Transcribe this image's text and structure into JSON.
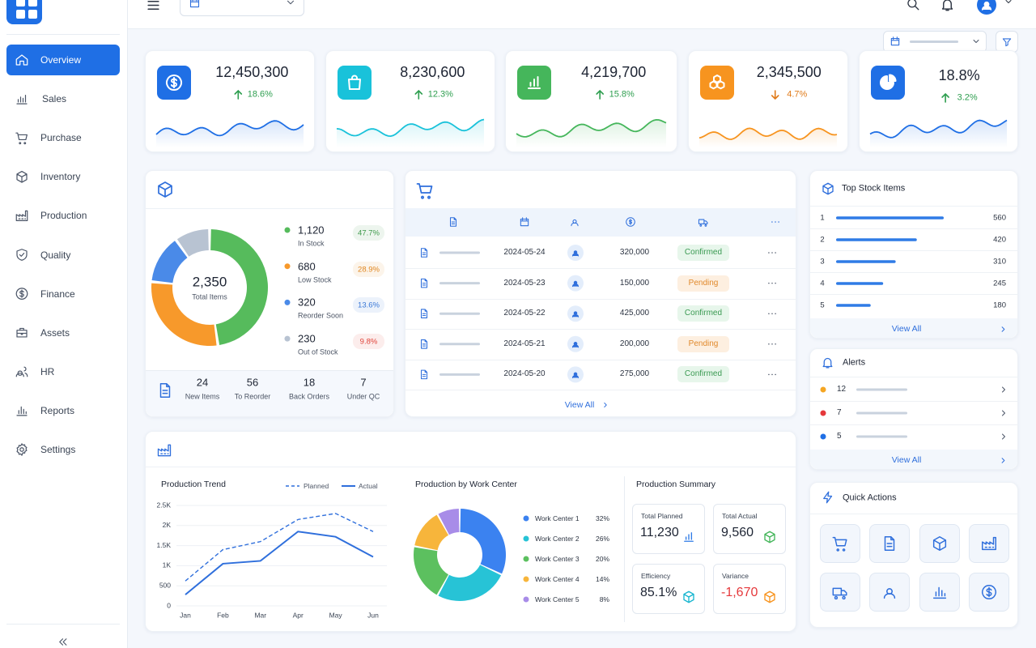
{
  "sidebar": {
    "items": [
      "Overview",
      "Sales",
      "Purchase",
      "Inventory",
      "Production",
      "Quality",
      "Finance",
      "Assets",
      "HR",
      "Reports",
      "Settings"
    ],
    "active": 0,
    "icons": [
      "home",
      "bars",
      "cart",
      "box",
      "factory",
      "shield",
      "dollar",
      "case",
      "users",
      "reports",
      "gear"
    ]
  },
  "kpis": [
    {
      "value": "12,450,300",
      "change": "18.6%",
      "direction": "up",
      "color": "#1f6fe5",
      "change_color": "#2e9e4f",
      "icon": "dollar"
    },
    {
      "value": "8,230,600",
      "change": "12.3%",
      "direction": "up",
      "color": "#19c2da",
      "change_color": "#2e9e4f",
      "icon": "bag"
    },
    {
      "value": "4,219,700",
      "change": "15.8%",
      "direction": "up",
      "color": "#45b65b",
      "change_color": "#2e9e4f",
      "icon": "chart"
    },
    {
      "value": "2,345,500",
      "change": "4.7%",
      "direction": "down",
      "color": "#f7941f",
      "change_color": "#e07b1a",
      "icon": "cubes"
    },
    {
      "value": "18.8%",
      "change": "3.2%",
      "direction": "up",
      "color": "#1f6fe5",
      "change_color": "#2e9e4f",
      "icon": "pie"
    }
  ],
  "inventory": {
    "total": "2,350",
    "total_label": "Total Items",
    "segments": [
      {
        "count": "1,120",
        "name": "In Stock",
        "percent": 47.7,
        "percent_label": "47.7%",
        "color": "#56bb5c"
      },
      {
        "count": "680",
        "name": "Low Stock",
        "percent": 28.9,
        "percent_label": "28.9%",
        "color": "#f7992b"
      },
      {
        "count": "320",
        "name": "Reorder Soon",
        "percent": 13.6,
        "percent_label": "13.6%",
        "color": "#4a8ae8"
      },
      {
        "count": "230",
        "name": "Out of Stock",
        "percent": 9.8,
        "percent_label": "9.8%",
        "color": "#b8c3d2"
      }
    ],
    "pill_colors": [
      "#3f9a4c",
      "#e0861f",
      "#3a78d6",
      "#e0443a"
    ],
    "stats": [
      {
        "value": "24",
        "label": "New Items"
      },
      {
        "value": "56",
        "label": "To Reorder"
      },
      {
        "value": "18",
        "label": "Back Orders"
      },
      {
        "value": "7",
        "label": "Under QC"
      }
    ]
  },
  "orders": {
    "rows": [
      {
        "date": "2024-05-24",
        "amount": "320,000",
        "status": "Confirmed",
        "status_color": "#3a9a52",
        "status_bg": "#e7f6eb"
      },
      {
        "date": "2024-05-23",
        "amount": "150,000",
        "status": "Pending",
        "status_color": "#e0882a",
        "status_bg": "#fdefe0"
      },
      {
        "date": "2024-05-22",
        "amount": "425,000",
        "status": "Confirmed",
        "status_color": "#3a9a52",
        "status_bg": "#e7f6eb"
      },
      {
        "date": "2024-05-21",
        "amount": "200,000",
        "status": "Pending",
        "status_color": "#e0882a",
        "status_bg": "#fdefe0"
      },
      {
        "date": "2024-05-20",
        "amount": "275,000",
        "status": "Confirmed",
        "status_color": "#3a9a52",
        "status_bg": "#e7f6eb"
      }
    ],
    "link": "View All"
  },
  "top_stock": {
    "title": "Top Stock Items",
    "color": "#2f7be6",
    "items": [
      {
        "rank": "1",
        "value": 560
      },
      {
        "rank": "2",
        "value": 420
      },
      {
        "rank": "3",
        "value": 310
      },
      {
        "rank": "4",
        "value": 245
      },
      {
        "rank": "5",
        "value": 180
      }
    ],
    "link": "View All"
  },
  "alerts": {
    "title": "Alerts",
    "items": [
      {
        "count": "12",
        "color": "#f5a623"
      },
      {
        "count": "7",
        "color": "#e5383b"
      },
      {
        "count": "5",
        "color": "#1f6fe5"
      }
    ],
    "link": "View All"
  },
  "quick_actions": {
    "title": "Quick Actions",
    "icons": [
      "cart",
      "doc",
      "box",
      "factory",
      "truck",
      "user",
      "reports",
      "dollar"
    ]
  },
  "production": {
    "trend": {
      "type": "line",
      "title": "Production Trend",
      "categories": [
        "Jan",
        "Feb",
        "Mar",
        "Apr",
        "May",
        "Jun"
      ],
      "series": [
        {
          "name": "Planned",
          "color": "#2f6fdc",
          "dashed": true,
          "values": [
            620,
            1400,
            1600,
            2150,
            2300,
            1850
          ]
        },
        {
          "name": "Actual",
          "color": "#2f6fdc",
          "dashed": false,
          "values": [
            280,
            1050,
            1120,
            1850,
            1720,
            1220
          ]
        }
      ],
      "ylim": [
        0,
        2500
      ],
      "yticks": [
        0,
        500,
        {
          "value": 1000,
          "label": "1K"
        },
        {
          "value": 1500,
          "label": "1.5K"
        },
        {
          "value": 2000,
          "label": "2K"
        },
        {
          "value": 2500,
          "label": "2.5K"
        }
      ],
      "grid": true
    },
    "work_center": {
      "type": "pie",
      "title": "Production by Work Center",
      "categories": [
        "Work Center 1",
        "Work Center 2",
        "Work Center 3",
        "Work Center 4",
        "Work Center 5"
      ],
      "values": [
        32,
        26,
        20,
        14,
        8
      ],
      "value_labels": [
        "32%",
        "26%",
        "20%",
        "14%",
        "8%"
      ],
      "colors": [
        "#3b82f0",
        "#27c3d6",
        "#5cc05f",
        "#f7b53b",
        "#a88ce8"
      ]
    },
    "summary": {
      "title": "Production Summary",
      "items": [
        {
          "label": "Total Planned",
          "value": "11,230",
          "color": "#1d2433",
          "icon": "chart",
          "icon_color": "#2f7be6"
        },
        {
          "label": "Total Actual",
          "value": "9,560",
          "color": "#1d2433",
          "icon": "box",
          "icon_color": "#45b65b"
        },
        {
          "label": "Efficiency",
          "value": "85.1%",
          "color": "#1d2433",
          "icon": "box",
          "icon_color": "#19b6d0"
        },
        {
          "label": "Variance",
          "value": "-1,670",
          "color": "#e5383b",
          "icon": "box",
          "icon_color": "#f7941f"
        }
      ]
    }
  }
}
